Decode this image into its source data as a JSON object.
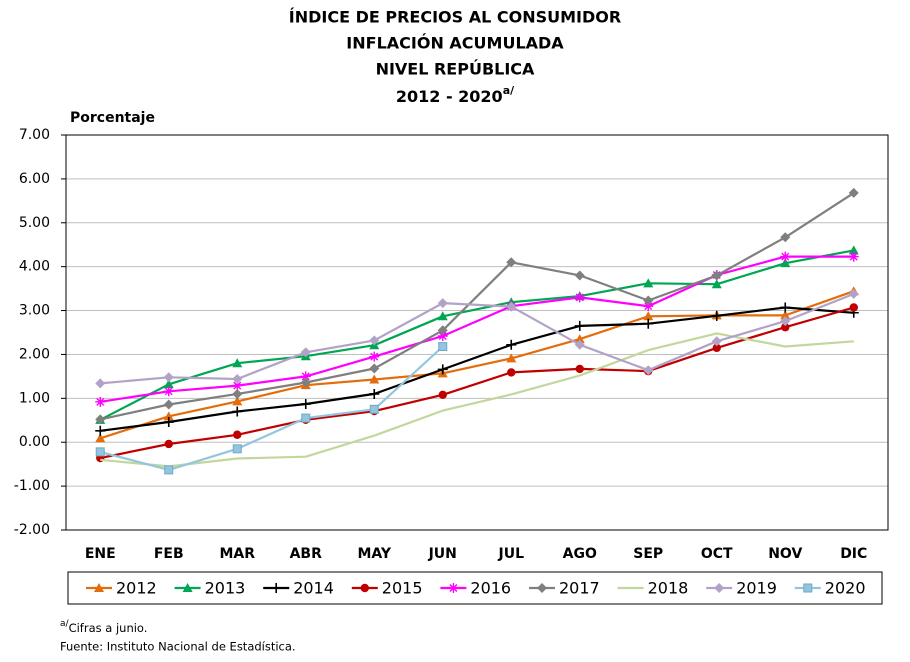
{
  "chart_data": {
    "type": "line",
    "title": [
      "ÍNDICE DE PRECIOS AL CONSUMIDOR",
      "INFLACIÓN ACUMULADA",
      "NIVEL REPÚBLICA",
      "2012 - 2020"
    ],
    "ylabel": "Porcentaje",
    "note": {
      "mark": "a/",
      "text": "Cifras a junio."
    },
    "source": "Fuente: Instituto Nacional de Estadística.",
    "categories": [
      "ENE",
      "FEB",
      "MAR",
      "ABR",
      "MAY",
      "JUN",
      "JUL",
      "AGO",
      "SEP",
      "OCT",
      "NOV",
      "DIC"
    ],
    "ylim": [
      -2,
      7
    ],
    "yticks": [
      {
        "value": -2,
        "label": "-2.00"
      },
      {
        "value": -1,
        "label": "-1.00"
      },
      {
        "value": 0,
        "label": "0.00"
      },
      {
        "value": 1,
        "label": "1.00"
      },
      {
        "value": 2,
        "label": "2.00"
      },
      {
        "value": 3,
        "label": "3.00"
      },
      {
        "value": 4,
        "label": "4.00"
      },
      {
        "value": 5,
        "label": "5.00"
      },
      {
        "value": 6,
        "label": "6.00"
      },
      {
        "value": 7,
        "label": "7.00"
      }
    ],
    "grid": true,
    "legend": "bottom",
    "series": [
      {
        "name": "2012",
        "color": "#e46c0a",
        "marker": "triangle",
        "values": [
          0.09,
          0.59,
          0.93,
          1.3,
          1.43,
          1.57,
          1.91,
          2.35,
          2.87,
          2.89,
          2.89,
          3.44
        ]
      },
      {
        "name": "2013",
        "color": "#00a651",
        "marker": "triangle",
        "values": [
          0.51,
          1.32,
          1.8,
          1.96,
          2.21,
          2.87,
          3.19,
          3.33,
          3.62,
          3.6,
          4.08,
          4.37
        ]
      },
      {
        "name": "2014",
        "color": "#000000",
        "marker": "plus",
        "values": [
          0.26,
          0.46,
          0.7,
          0.87,
          1.1,
          1.66,
          2.22,
          2.65,
          2.7,
          2.88,
          3.07,
          2.95
        ]
      },
      {
        "name": "2015",
        "color": "#c00000",
        "marker": "circle",
        "values": [
          -0.36,
          -0.04,
          0.17,
          0.51,
          0.71,
          1.08,
          1.59,
          1.67,
          1.62,
          2.15,
          2.62,
          3.07
        ]
      },
      {
        "name": "2016",
        "color": "#ff00ff",
        "marker": "star",
        "values": [
          0.92,
          1.16,
          1.29,
          1.5,
          1.95,
          2.42,
          3.1,
          3.3,
          3.1,
          3.81,
          4.23,
          4.23
        ]
      },
      {
        "name": "2017",
        "color": "#7f7f7f",
        "marker": "diamond",
        "values": [
          0.52,
          0.86,
          1.1,
          1.36,
          1.68,
          2.55,
          4.1,
          3.8,
          3.23,
          3.8,
          4.67,
          5.68
        ]
      },
      {
        "name": "2018",
        "color": "#c3d69b",
        "marker": "none",
        "values": [
          -0.4,
          -0.55,
          -0.37,
          -0.33,
          0.15,
          0.72,
          1.09,
          1.52,
          2.1,
          2.48,
          2.18,
          2.3
        ]
      },
      {
        "name": "2019",
        "color": "#b3a2c7",
        "marker": "diamond",
        "values": [
          1.34,
          1.48,
          1.44,
          2.05,
          2.32,
          3.17,
          3.09,
          2.22,
          1.64,
          2.3,
          2.76,
          3.38
        ]
      },
      {
        "name": "2020",
        "color": "#93c6de",
        "marker": "square",
        "values": [
          -0.22,
          -0.63,
          -0.15,
          0.55,
          0.75,
          2.18,
          null,
          null,
          null,
          null,
          null,
          null
        ]
      }
    ]
  }
}
